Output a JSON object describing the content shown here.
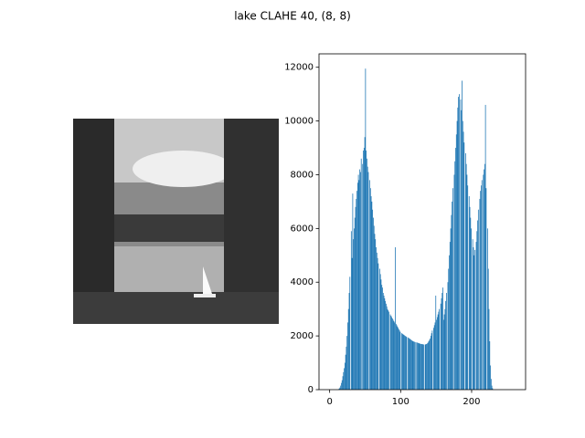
{
  "chart_data": {
    "type": "histogram",
    "title": "lake CLAHE 40, (8, 8)",
    "color": "#1f77b4",
    "bins": [
      0,
      1,
      2,
      3,
      4,
      5,
      6,
      7,
      8,
      9,
      10,
      11,
      12,
      13,
      14,
      15,
      16,
      17,
      18,
      19,
      20,
      21,
      22,
      23,
      24,
      25,
      26,
      27,
      28,
      29,
      30,
      31,
      32,
      33,
      34,
      35,
      36,
      37,
      38,
      39,
      40,
      41,
      42,
      43,
      44,
      45,
      46,
      47,
      48,
      49,
      50,
      51,
      52,
      53,
      54,
      55,
      56,
      57,
      58,
      59,
      60,
      61,
      62,
      63,
      64,
      65,
      66,
      67,
      68,
      69,
      70,
      71,
      72,
      73,
      74,
      75,
      76,
      77,
      78,
      79,
      80,
      81,
      82,
      83,
      84,
      85,
      86,
      87,
      88,
      89,
      90,
      91,
      92,
      93,
      94,
      95,
      96,
      97,
      98,
      99,
      100,
      101,
      102,
      103,
      104,
      105,
      106,
      107,
      108,
      109,
      110,
      111,
      112,
      113,
      114,
      115,
      116,
      117,
      118,
      119,
      120,
      121,
      122,
      123,
      124,
      125,
      126,
      127,
      128,
      129,
      130,
      131,
      132,
      133,
      134,
      135,
      136,
      137,
      138,
      139,
      140,
      141,
      142,
      143,
      144,
      145,
      146,
      147,
      148,
      149,
      150,
      151,
      152,
      153,
      154,
      155,
      156,
      157,
      158,
      159,
      160,
      161,
      162,
      163,
      164,
      165,
      166,
      167,
      168,
      169,
      170,
      171,
      172,
      173,
      174,
      175,
      176,
      177,
      178,
      179,
      180,
      181,
      182,
      183,
      184,
      185,
      186,
      187,
      188,
      189,
      190,
      191,
      192,
      193,
      194,
      195,
      196,
      197,
      198,
      199,
      200,
      201,
      202,
      203,
      204,
      205,
      206,
      207,
      208,
      209,
      210,
      211,
      212,
      213,
      214,
      215,
      216,
      217,
      218,
      219,
      220,
      221,
      222,
      223,
      224,
      225,
      226,
      227,
      228,
      229,
      230,
      231,
      232,
      233,
      234,
      235,
      236,
      237,
      238,
      239,
      240,
      241,
      242,
      243,
      244,
      245,
      246,
      247,
      248,
      249,
      250,
      251,
      252,
      253,
      254,
      255,
      256
    ],
    "values": [
      0,
      0,
      0,
      0,
      0,
      0,
      0,
      0,
      0,
      0,
      0,
      0,
      20,
      40,
      80,
      150,
      250,
      350,
      500,
      650,
      800,
      1000,
      1300,
      1600,
      2000,
      2500,
      3000,
      3600,
      4200,
      0,
      5900,
      4900,
      7300,
      5600,
      6000,
      6400,
      6800,
      7100,
      7400,
      7700,
      8000,
      7800,
      8200,
      8100,
      8600,
      0,
      8400,
      8900,
      9000,
      9400,
      11950,
      8900,
      8600,
      8300,
      8100,
      0,
      7800,
      7500,
      7200,
      7000,
      6700,
      6400,
      6100,
      5800,
      5600,
      5300,
      5100,
      4900,
      4700,
      0,
      4500,
      4300,
      4100,
      3900,
      3800,
      3600,
      3500,
      3400,
      3300,
      3200,
      3100,
      3000,
      2950,
      2900,
      0,
      2800,
      2750,
      2700,
      2650,
      2600,
      2550,
      2500,
      5300,
      2450,
      2400,
      2350,
      2300,
      2250,
      2200,
      2150,
      0,
      2100,
      2080,
      2060,
      2040,
      2020,
      2000,
      1980,
      1960,
      0,
      1940,
      1920,
      1900,
      1880,
      1860,
      1840,
      1820,
      1800,
      1790,
      1780,
      1770,
      0,
      1760,
      1750,
      1740,
      1730,
      1720,
      1710,
      1700,
      1700,
      1690,
      1690,
      1680,
      0,
      1680,
      1690,
      1700,
      1720,
      1750,
      1800,
      1850,
      1900,
      2000,
      2100,
      2200,
      0,
      2300,
      2400,
      2500,
      3500,
      2600,
      2700,
      2800,
      2900,
      3000,
      0,
      3200,
      3400,
      3600,
      3800,
      2600,
      2800,
      3000,
      3300,
      3600,
      0,
      4000,
      4500,
      5000,
      5500,
      6000,
      6500,
      7000,
      7500,
      0,
      8000,
      8500,
      9000,
      9500,
      10000,
      10500,
      10900,
      11000,
      0,
      10800,
      10400,
      11500,
      10000,
      9600,
      9200,
      0,
      8800,
      8400,
      8000,
      7600,
      0,
      7200,
      6800,
      6400,
      6000,
      0,
      5600,
      5300,
      5000,
      5200,
      0,
      5500,
      5900,
      6300,
      6700,
      0,
      7100,
      7400,
      7600,
      7800,
      0,
      8000,
      8200,
      8400,
      10600,
      7500,
      0,
      6000,
      4500,
      3000,
      1800,
      900,
      400,
      150,
      50,
      0,
      0,
      0,
      0,
      0,
      0,
      0,
      0,
      0,
      0,
      0,
      0,
      0,
      0,
      0,
      0,
      0,
      0,
      0,
      0,
      0,
      0,
      0,
      0,
      0,
      0
    ],
    "xlim": [
      -15,
      276
    ],
    "ylim": [
      0,
      12500
    ],
    "xticks": [
      0,
      100,
      200
    ],
    "yticks": [
      0,
      2000,
      4000,
      6000,
      8000,
      10000,
      12000
    ]
  }
}
